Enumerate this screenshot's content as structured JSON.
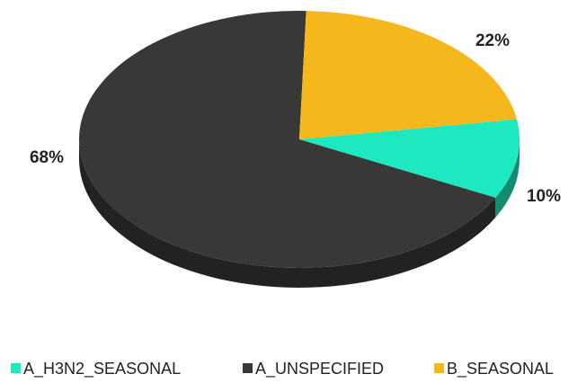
{
  "chart_data": {
    "type": "pie",
    "categories": [
      "A_H3N2_SEASONAL",
      "A_UNSPECIFIED",
      "B_SEASONAL"
    ],
    "values": [
      10,
      68,
      22
    ],
    "value_labels": [
      "10%",
      "68%",
      "22%"
    ],
    "colors": [
      "#1ee8c0",
      "#383838",
      "#f5b81c"
    ],
    "legend": "bottom"
  }
}
